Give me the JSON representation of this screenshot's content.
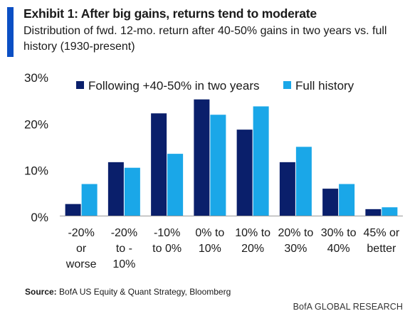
{
  "header": {
    "title": "Exhibit 1: After big gains, returns tend to moderate",
    "subtitle": "Distribution of fwd. 12-mo. return after 40-50% gains in two years vs. full history (1930-present)"
  },
  "colors": {
    "accent": "#0b4fc4",
    "series_dark": "#0a1f6b",
    "series_light": "#1aa7e8",
    "axis": "#999999"
  },
  "chart_data": {
    "type": "bar",
    "categories": [
      [
        "-20%",
        "or",
        "worse"
      ],
      [
        "-20%",
        "to -",
        "10%"
      ],
      [
        "-10%",
        "to 0%"
      ],
      [
        "0% to",
        "10%"
      ],
      [
        "10% to",
        "20%"
      ],
      [
        "20% to",
        "30%"
      ],
      [
        "30% to",
        "40%"
      ],
      [
        "45% or",
        "better"
      ]
    ],
    "series": [
      {
        "name": "Following +40-50% in two years",
        "color": "#0a1f6b",
        "values": [
          2.5,
          11.5,
          22.0,
          25.0,
          18.5,
          11.5,
          5.8,
          1.4
        ]
      },
      {
        "name": "Full history",
        "color": "#1aa7e8",
        "values": [
          6.8,
          10.3,
          13.3,
          21.7,
          23.5,
          14.8,
          6.8,
          1.8
        ]
      }
    ],
    "ylim": [
      0,
      30
    ],
    "yticks": [
      0,
      10,
      20,
      30
    ],
    "ytick_labels": [
      "0%",
      "10%",
      "20%",
      "30%"
    ],
    "legend": "top",
    "grid": false
  },
  "footer": {
    "source_label": "Source:",
    "source_text": " BofA US Equity & Quant Strategy, Bloomberg",
    "brand": "BofA GLOBAL RESEARCH"
  }
}
